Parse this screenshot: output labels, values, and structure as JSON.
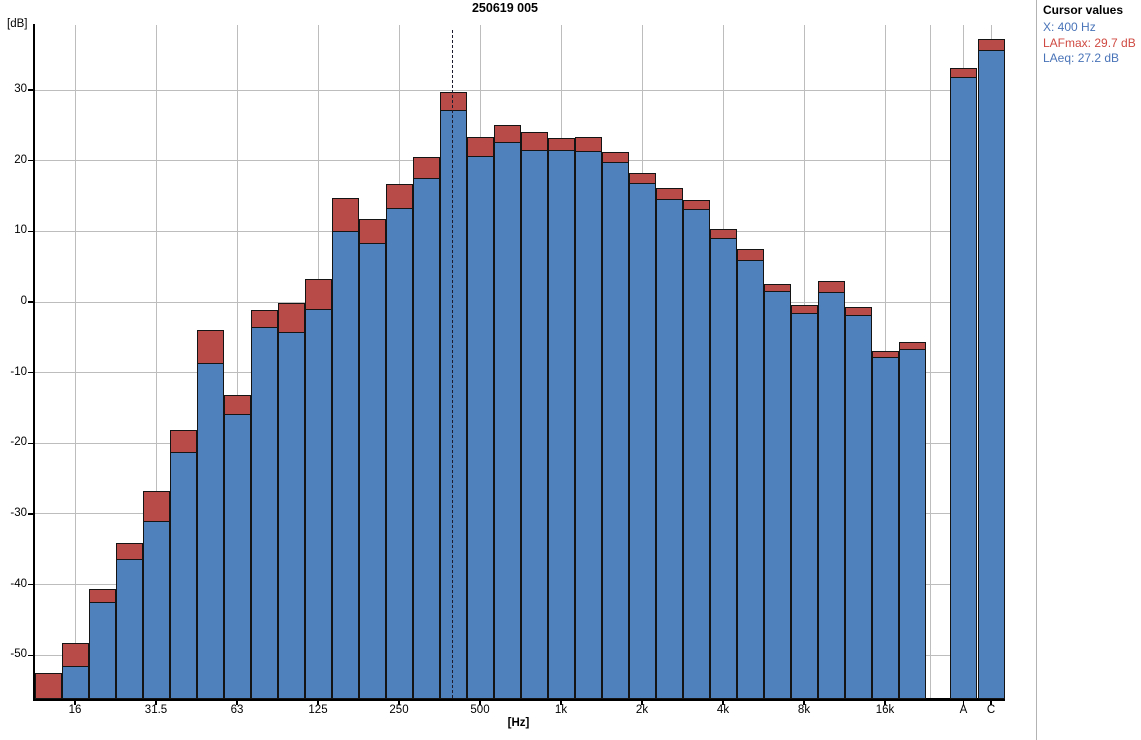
{
  "window": {
    "title": "250619 005"
  },
  "panel": {
    "header": "Cursor values",
    "x_line": "X: 400 Hz",
    "lafmax_line": "LAFmax: 29.7 dB",
    "laeq_line": "LAeq: 27.2 dB"
  },
  "colors": {
    "laeq_blue": "#4f81bd",
    "lafmax_red": "#b84b47",
    "grid": "#bdbdbd",
    "panel_blue_text": "#4a74b8",
    "panel_red_text": "#cf4a42"
  },
  "chart_data": {
    "type": "bar",
    "title": "250619 005",
    "ylabel": "[dB]",
    "xlabel": "[Hz]",
    "ylim": [
      -56,
      39
    ],
    "yticks": [
      30,
      20,
      10,
      0,
      -10,
      -20,
      -30,
      -40,
      -50
    ],
    "xtick_labels": [
      "16",
      "31.5",
      "63",
      "125",
      "250",
      "500",
      "1k",
      "2k",
      "4k",
      "8k",
      "16k"
    ],
    "grid": true,
    "legend": "none",
    "series": [
      {
        "name": "LAFmax",
        "color": "#b84b47"
      },
      {
        "name": "LAeq",
        "color": "#4f81bd"
      }
    ],
    "bands": [
      {
        "freq": "12.5",
        "lafmax": -52.5,
        "laeq": -57.0
      },
      {
        "freq": "16",
        "lafmax": -48.3,
        "laeq": -51.5
      },
      {
        "freq": "20",
        "lafmax": -40.6,
        "laeq": -42.5
      },
      {
        "freq": "25",
        "lafmax": -34.1,
        "laeq": -36.4
      },
      {
        "freq": "31.5",
        "lafmax": -26.8,
        "laeq": -31.0
      },
      {
        "freq": "40",
        "lafmax": -18.1,
        "laeq": -21.2
      },
      {
        "freq": "50",
        "lafmax": -4.0,
        "laeq": -8.7
      },
      {
        "freq": "63",
        "lafmax": -13.2,
        "laeq": -15.9
      },
      {
        "freq": "80",
        "lafmax": -1.1,
        "laeq": -3.6
      },
      {
        "freq": "100",
        "lafmax": -0.2,
        "laeq": -4.3
      },
      {
        "freq": "125",
        "lafmax": 3.2,
        "laeq": -1.0
      },
      {
        "freq": "160",
        "lafmax": 14.7,
        "laeq": 10.0
      },
      {
        "freq": "200",
        "lafmax": 11.8,
        "laeq": 8.4
      },
      {
        "freq": "250",
        "lafmax": 16.7,
        "laeq": 13.3
      },
      {
        "freq": "315",
        "lafmax": 20.5,
        "laeq": 17.6
      },
      {
        "freq": "400",
        "lafmax": 29.7,
        "laeq": 27.2
      },
      {
        "freq": "500",
        "lafmax": 23.4,
        "laeq": 20.7
      },
      {
        "freq": "630",
        "lafmax": 25.1,
        "laeq": 22.6
      },
      {
        "freq": "800",
        "lafmax": 24.1,
        "laeq": 21.5
      },
      {
        "freq": "1k",
        "lafmax": 23.2,
        "laeq": 21.5
      },
      {
        "freq": "1.25k",
        "lafmax": 23.3,
        "laeq": 21.4
      },
      {
        "freq": "1.6k",
        "lafmax": 21.2,
        "laeq": 19.8
      },
      {
        "freq": "2k",
        "lafmax": 18.3,
        "laeq": 16.9
      },
      {
        "freq": "2.5k",
        "lafmax": 16.1,
        "laeq": 14.6
      },
      {
        "freq": "3.15k",
        "lafmax": 14.5,
        "laeq": 13.2
      },
      {
        "freq": "4k",
        "lafmax": 10.4,
        "laeq": 9.1
      },
      {
        "freq": "5k",
        "lafmax": 7.5,
        "laeq": 5.9
      },
      {
        "freq": "6.3k",
        "lafmax": 2.5,
        "laeq": 1.5
      },
      {
        "freq": "8k",
        "lafmax": -0.4,
        "laeq": -1.5
      },
      {
        "freq": "10k",
        "lafmax": 3.0,
        "laeq": 1.4
      },
      {
        "freq": "12.5k",
        "lafmax": -0.7,
        "laeq": -1.8
      },
      {
        "freq": "16k",
        "lafmax": -7.0,
        "laeq": -7.8
      },
      {
        "freq": "20k",
        "lafmax": -5.7,
        "laeq": -6.7
      }
    ],
    "weighted": [
      {
        "label": "A",
        "lafmax": 33.1,
        "laeq": 31.9
      },
      {
        "label": "C",
        "lafmax": 37.2,
        "laeq": 35.6
      }
    ],
    "cursor": {
      "band": "400",
      "lafmax": 29.7,
      "laeq": 27.2
    }
  }
}
